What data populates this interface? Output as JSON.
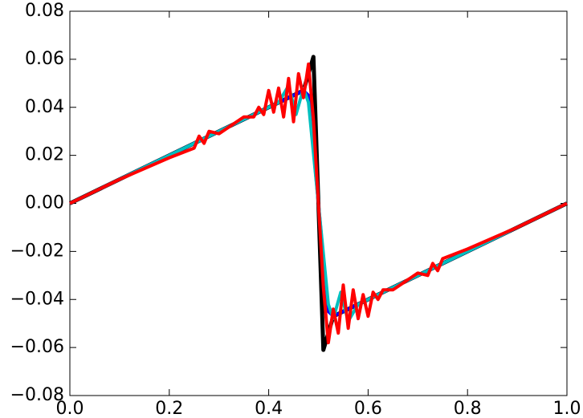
{
  "chart_data": {
    "type": "line",
    "xlim": [
      0,
      1
    ],
    "ylim": [
      -0.08,
      0.08
    ],
    "xticks": [
      {
        "value": 0,
        "label": "0.0"
      },
      {
        "value": 0.2,
        "label": "0.2"
      },
      {
        "value": 0.4,
        "label": "0.4"
      },
      {
        "value": 0.6,
        "label": "0.6"
      },
      {
        "value": 0.8,
        "label": "0.8"
      },
      {
        "value": 1,
        "label": "1.0"
      }
    ],
    "yticks": [
      {
        "value": -0.08,
        "label": "−0.08"
      },
      {
        "value": -0.06,
        "label": "−0.06"
      },
      {
        "value": -0.04,
        "label": "−0.04"
      },
      {
        "value": -0.02,
        "label": "−0.02"
      },
      {
        "value": 0,
        "label": "0.00"
      },
      {
        "value": 0.02,
        "label": "0.02"
      },
      {
        "value": 0.04,
        "label": "0.04"
      },
      {
        "value": 0.06,
        "label": "0.06"
      },
      {
        "value": 0.08,
        "label": "0.08"
      }
    ],
    "series": [
      {
        "color": "#000000",
        "x": [
          0,
          0.47,
          0.49,
          0.51,
          0.53,
          1
        ],
        "values": [
          0,
          0.047,
          0.061,
          -0.061,
          -0.047,
          0
        ]
      },
      {
        "color": "#0000ff",
        "x": [
          0,
          0.45,
          0.47,
          0.48,
          0.5,
          0.52,
          0.53,
          0.55,
          1
        ],
        "values": [
          0,
          0.045,
          0.047,
          0.045,
          0,
          -0.045,
          -0.047,
          -0.045,
          0
        ]
      },
      {
        "color": "#00bfbf",
        "x": [
          0,
          0.42,
          0.44,
          0.455,
          0.47,
          0.48,
          0.5,
          0.52,
          0.53,
          0.545,
          0.56,
          0.58,
          1
        ],
        "values": [
          0,
          0.042,
          0.049,
          0.037,
          0.048,
          0.042,
          0,
          -0.042,
          -0.048,
          -0.037,
          -0.049,
          -0.042,
          0
        ]
      },
      {
        "color": "#ff0000",
        "x": [
          0,
          0.1,
          0.2,
          0.25,
          0.26,
          0.27,
          0.28,
          0.3,
          0.35,
          0.37,
          0.38,
          0.39,
          0.4,
          0.41,
          0.42,
          0.43,
          0.44,
          0.45,
          0.46,
          0.47,
          0.48,
          0.49,
          0.5,
          0.51,
          0.52,
          0.53,
          0.54,
          0.55,
          0.56,
          0.57,
          0.58,
          0.59,
          0.6,
          0.61,
          0.62,
          0.63,
          0.65,
          0.7,
          0.72,
          0.73,
          0.74,
          0.75,
          0.8,
          0.9,
          1
        ],
        "values": [
          0,
          0.01,
          0.019,
          0.023,
          0.028,
          0.025,
          0.03,
          0.029,
          0.036,
          0.036,
          0.04,
          0.037,
          0.047,
          0.038,
          0.048,
          0.036,
          0.052,
          0.034,
          0.054,
          0.044,
          0.058,
          0.035,
          0,
          -0.035,
          -0.058,
          -0.044,
          -0.054,
          -0.034,
          -0.052,
          -0.036,
          -0.048,
          -0.038,
          -0.047,
          -0.037,
          -0.04,
          -0.036,
          -0.036,
          -0.029,
          -0.03,
          -0.025,
          -0.028,
          -0.023,
          -0.019,
          -0.01,
          0
        ]
      }
    ]
  }
}
